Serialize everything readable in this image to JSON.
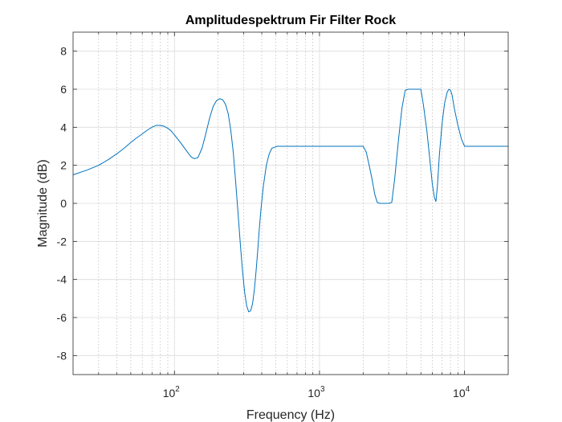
{
  "chart_data": {
    "type": "line",
    "title": "Amplitudespektrum Fir Filter Rock",
    "xlabel": "Frequency (Hz)",
    "ylabel": "Magnitude (dB)",
    "xscale": "log",
    "xlim": [
      20,
      20000
    ],
    "ylim": [
      -9,
      9
    ],
    "x_tick_labels": [
      {
        "base": "10",
        "exp": "2",
        "value": 100
      },
      {
        "base": "10",
        "exp": "3",
        "value": 1000
      },
      {
        "base": "10",
        "exp": "4",
        "value": 10000
      }
    ],
    "y_ticks": [
      -8,
      -6,
      -4,
      -2,
      0,
      2,
      4,
      6,
      8
    ],
    "grid": true,
    "line_color": "#0072BD",
    "series": [
      {
        "x": [
          20,
          25,
          30,
          35,
          40,
          45,
          50,
          55,
          60,
          65,
          70,
          75,
          80,
          85,
          90,
          95,
          100,
          110,
          120,
          130,
          137,
          145,
          155,
          165,
          175,
          185,
          195,
          205,
          215,
          225,
          235,
          245,
          255,
          265,
          275,
          285,
          295,
          305,
          315,
          325,
          335,
          345,
          355,
          365,
          375,
          385,
          395,
          410,
          430,
          450,
          470,
          490,
          510,
          530,
          550,
          580,
          700,
          1000,
          1500,
          2000,
          2100,
          2200,
          2300,
          2400,
          2500,
          2600,
          2800,
          3000,
          3150,
          3300,
          3500,
          3700,
          3900,
          4100,
          4300,
          4600,
          5000,
          5200,
          5500,
          5800,
          6000,
          6200,
          6350,
          6500,
          6700,
          7000,
          7300,
          7600,
          7800,
          8000,
          8200,
          8500,
          9000,
          9500,
          10000,
          10500,
          12000,
          15000,
          20000
        ],
        "y": [
          1.5,
          1.75,
          2.0,
          2.3,
          2.6,
          2.9,
          3.2,
          3.45,
          3.65,
          3.85,
          4.0,
          4.1,
          4.1,
          4.05,
          3.95,
          3.8,
          3.6,
          3.2,
          2.8,
          2.45,
          2.35,
          2.4,
          2.9,
          3.7,
          4.5,
          5.1,
          5.4,
          5.5,
          5.45,
          5.2,
          4.7,
          3.8,
          2.6,
          1.0,
          -0.6,
          -2.2,
          -3.6,
          -4.7,
          -5.4,
          -5.7,
          -5.65,
          -5.3,
          -4.6,
          -3.6,
          -2.5,
          -1.3,
          -0.3,
          0.9,
          2.0,
          2.6,
          2.9,
          2.95,
          3.0,
          3.0,
          3.0,
          3.0,
          3.0,
          3.0,
          3.0,
          3.0,
          2.7,
          2.0,
          1.3,
          0.5,
          0.05,
          0.0,
          0.0,
          0.0,
          0.05,
          1.3,
          3.3,
          5.0,
          5.95,
          6.0,
          6.0,
          6.0,
          6.0,
          5.2,
          3.8,
          2.1,
          1.0,
          0.3,
          0.1,
          0.9,
          2.5,
          4.2,
          5.3,
          5.85,
          6.0,
          5.95,
          5.7,
          5.0,
          4.1,
          3.4,
          3.0,
          3.0,
          3.0,
          3.0,
          3.0
        ]
      }
    ]
  }
}
